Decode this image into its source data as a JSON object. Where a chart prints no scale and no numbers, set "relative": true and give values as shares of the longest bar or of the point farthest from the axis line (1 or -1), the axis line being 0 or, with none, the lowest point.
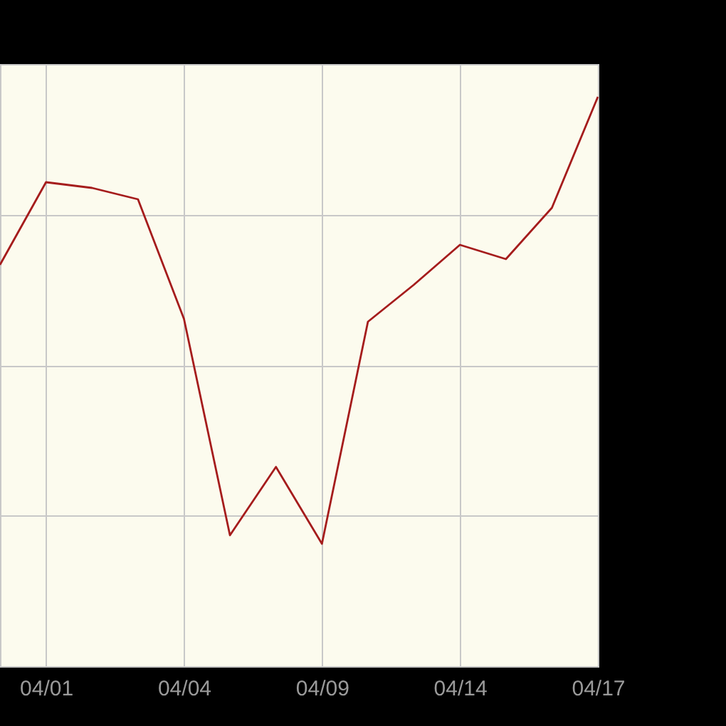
{
  "chart_data": {
    "type": "line",
    "relative": true,
    "grid": true,
    "categories": [
      null,
      "04/01",
      null,
      null,
      "04/04",
      null,
      null,
      "04/09",
      null,
      null,
      "04/14",
      null,
      null,
      "04/17"
    ],
    "series": [
      {
        "color": "#a51c1c",
        "values": [
          0.705,
          0.85,
          0.84,
          0.82,
          0.61,
          0.23,
          0.35,
          0.215,
          0.605,
          0.67,
          0.74,
          0.715,
          0.805,
          1.0
        ]
      }
    ]
  }
}
